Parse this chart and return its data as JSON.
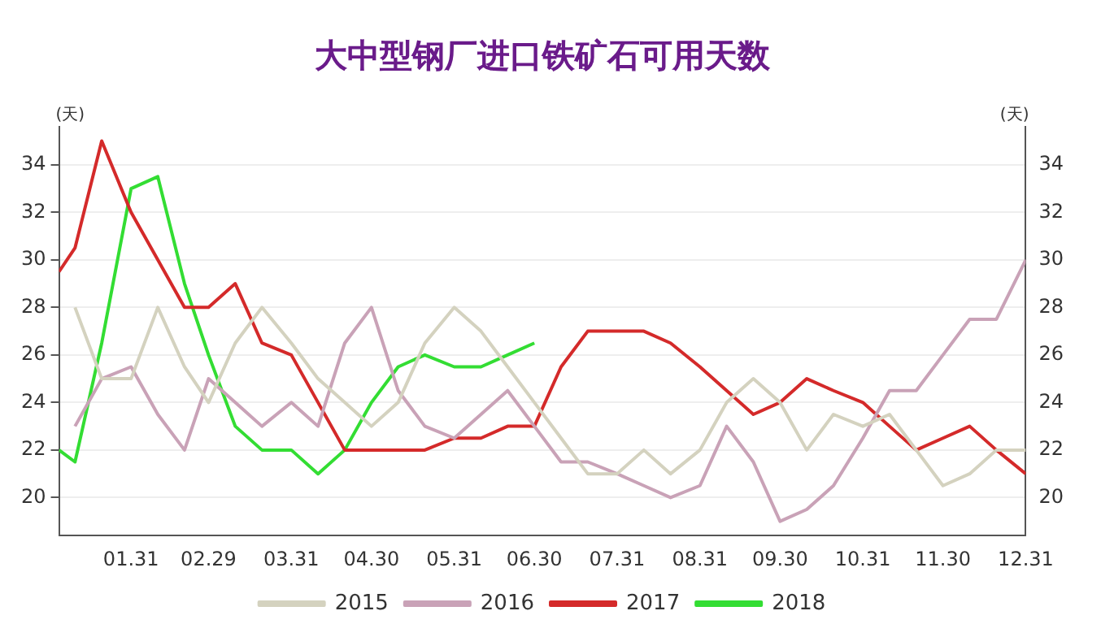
{
  "chart_data": {
    "type": "line",
    "title": "大中型钢厂进口铁矿石可用天数",
    "ylabel": "(天)",
    "y2label": "(天)",
    "x": [
      "--01-04",
      "--01-10",
      "--01-20",
      "--01-31",
      "--02-10",
      "--02-20",
      "--02-29",
      "--03-10",
      "--03-20",
      "--03-31",
      "--04-10",
      "--04-20",
      "--04-30",
      "--05-10",
      "--05-20",
      "--05-31",
      "--06-10",
      "--06-20",
      "--06-30",
      "--07-10",
      "--07-20",
      "--07-31",
      "--08-10",
      "--08-20",
      "--08-31",
      "--09-10",
      "--09-20",
      "--09-30",
      "--10-10",
      "--10-20",
      "--10-31",
      "--11-10",
      "--11-20",
      "--11-30",
      "--12-10",
      "--12-20",
      "--12-31"
    ],
    "xlim": [
      "--01-04",
      "--12-31"
    ],
    "xticks": [
      {
        "value": "--01-31",
        "label": "01.31"
      },
      {
        "value": "--02-29",
        "label": "02.29"
      },
      {
        "value": "--03-31",
        "label": "03.31"
      },
      {
        "value": "--04-30",
        "label": "04.30"
      },
      {
        "value": "--05-31",
        "label": "05.31"
      },
      {
        "value": "--06-30",
        "label": "06.30"
      },
      {
        "value": "--07-31",
        "label": "07.31"
      },
      {
        "value": "--08-31",
        "label": "08.31"
      },
      {
        "value": "--09-30",
        "label": "09.30"
      },
      {
        "value": "--10-31",
        "label": "10.31"
      },
      {
        "value": "--11-30",
        "label": "11.30"
      },
      {
        "value": "--12-31",
        "label": "12.31"
      }
    ],
    "ylim": [
      18.4,
      35.6
    ],
    "yticks": [
      20,
      22,
      24,
      26,
      28,
      30,
      32,
      34
    ],
    "y2lim": [
      18.4,
      35.6
    ],
    "y2ticks": [
      20,
      22,
      24,
      26,
      28,
      30,
      32,
      34
    ],
    "series": [
      {
        "name": "2015",
        "color": "#d4d2bf",
        "values": [
          null,
          28,
          25,
          25,
          28,
          25.5,
          24,
          26.5,
          28,
          26.5,
          25,
          24,
          23,
          24,
          26.5,
          28,
          27,
          25.5,
          24,
          22.5,
          21,
          21,
          22,
          21,
          22,
          24,
          25,
          24,
          22,
          23.5,
          23,
          23.5,
          22,
          20.5,
          21,
          22,
          22
        ]
      },
      {
        "name": "2016",
        "color": "#c9a2b7",
        "values": [
          null,
          23,
          25,
          25.5,
          23.5,
          22,
          25,
          24,
          23,
          24,
          23,
          26.5,
          28,
          24.5,
          23,
          22.5,
          23.5,
          24.5,
          23,
          21.5,
          21.5,
          21,
          20.5,
          20,
          20.5,
          23,
          21.5,
          19,
          19.5,
          20.5,
          22.5,
          24.5,
          24.5,
          26,
          27.5,
          27.5,
          30
        ]
      },
      {
        "name": "2017",
        "color": "#d42a2a",
        "values": [
          29.5,
          30.5,
          35,
          32,
          30,
          28,
          28,
          29,
          26.5,
          26,
          24,
          22,
          22,
          22,
          22,
          22.5,
          22.5,
          23,
          23,
          25.5,
          27,
          27,
          27,
          26.5,
          25.5,
          24.5,
          23.5,
          24,
          25,
          24.5,
          24,
          23,
          22,
          22.5,
          23,
          22,
          21
        ]
      },
      {
        "name": "2018",
        "color": "#33dd33",
        "values": [
          22,
          21.5,
          26.5,
          33,
          33.5,
          29,
          26,
          23,
          22,
          22,
          21,
          22,
          24,
          25.5,
          26,
          25.5,
          25.5,
          26,
          26.5,
          null,
          null,
          null,
          null,
          null,
          null,
          null,
          null,
          null,
          null,
          null,
          null,
          null,
          null,
          null,
          null,
          null,
          null
        ]
      }
    ],
    "grid": "y",
    "legend": "bottom",
    "marker": "none",
    "line_style": "solid"
  }
}
